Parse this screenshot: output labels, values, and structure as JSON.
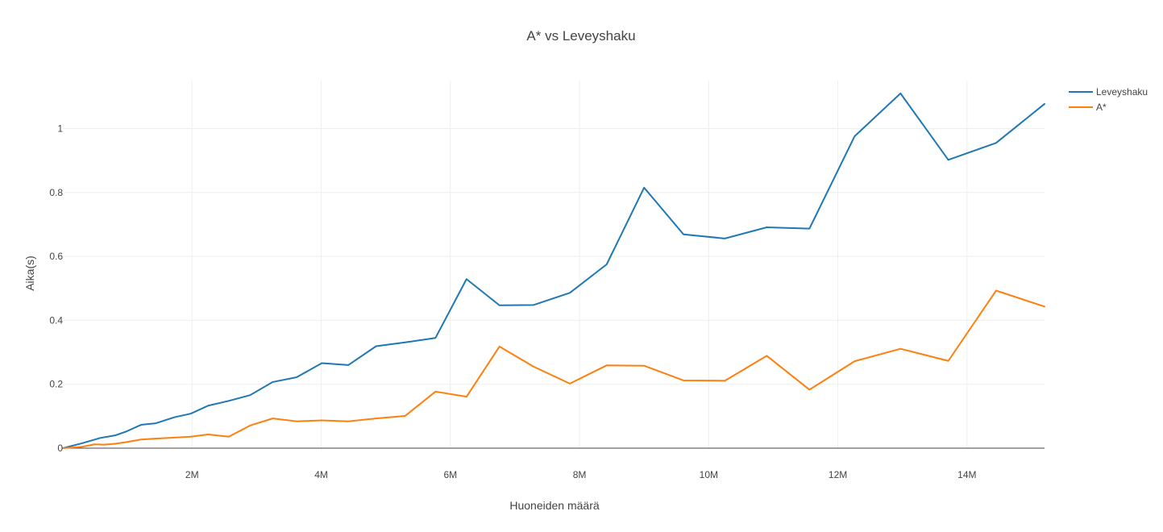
{
  "chart_data": {
    "type": "line",
    "title": "A* vs Leveyshaku",
    "xlabel": "Huoneiden määrä",
    "ylabel": "Aika(s)",
    "xlim": [
      0,
      15200000
    ],
    "ylim": [
      0,
      1.15
    ],
    "x_ticks": [
      {
        "value": 2000000,
        "label": "2M"
      },
      {
        "value": 4000000,
        "label": "4M"
      },
      {
        "value": 6000000,
        "label": "6M"
      },
      {
        "value": 8000000,
        "label": "8M"
      },
      {
        "value": 10000000,
        "label": "10M"
      },
      {
        "value": 12000000,
        "label": "12M"
      },
      {
        "value": 14000000,
        "label": "14M"
      }
    ],
    "y_ticks": [
      {
        "value": 0,
        "label": "0"
      },
      {
        "value": 0.2,
        "label": "0.2"
      },
      {
        "value": 0.4,
        "label": "0.4"
      },
      {
        "value": 0.6,
        "label": "0.6"
      },
      {
        "value": 0.8,
        "label": "0.8"
      },
      {
        "value": 1,
        "label": "1"
      }
    ],
    "grid": true,
    "legend_position": "top-right",
    "series": [
      {
        "name": "Leveyshaku",
        "color": "#1f77b4",
        "points": [
          [
            0,
            0
          ],
          [
            290000,
            0.015
          ],
          [
            580000,
            0.032
          ],
          [
            810000,
            0.04
          ],
          [
            980000,
            0.052
          ],
          [
            1210000,
            0.073
          ],
          [
            1440000,
            0.078
          ],
          [
            1730000,
            0.097
          ],
          [
            1980000,
            0.108
          ],
          [
            2250000,
            0.133
          ],
          [
            2570000,
            0.148
          ],
          [
            2900000,
            0.166
          ],
          [
            3250000,
            0.207
          ],
          [
            3620000,
            0.222
          ],
          [
            4010000,
            0.266
          ],
          [
            4420000,
            0.26
          ],
          [
            4850000,
            0.319
          ],
          [
            5300000,
            0.331
          ],
          [
            5770000,
            0.345
          ],
          [
            6250000,
            0.529
          ],
          [
            6760000,
            0.447
          ],
          [
            7290000,
            0.448
          ],
          [
            7850000,
            0.486
          ],
          [
            8420000,
            0.575
          ],
          [
            9000000,
            0.815
          ],
          [
            9610000,
            0.669
          ],
          [
            10250000,
            0.656
          ],
          [
            10900000,
            0.691
          ],
          [
            11560000,
            0.687
          ],
          [
            12260000,
            0.976
          ],
          [
            12970000,
            1.11
          ],
          [
            13710000,
            0.902
          ],
          [
            14450000,
            0.955
          ],
          [
            15200000,
            1.077
          ]
        ]
      },
      {
        "name": "A*",
        "color": "#ff7f0e",
        "points": [
          [
            0,
            0
          ],
          [
            290000,
            0.004
          ],
          [
            490000,
            0.012
          ],
          [
            640000,
            0.011
          ],
          [
            810000,
            0.014
          ],
          [
            980000,
            0.019
          ],
          [
            1210000,
            0.027
          ],
          [
            1440000,
            0.03
          ],
          [
            1730000,
            0.033
          ],
          [
            1980000,
            0.036
          ],
          [
            2250000,
            0.043
          ],
          [
            2570000,
            0.036
          ],
          [
            2900000,
            0.071
          ],
          [
            3250000,
            0.093
          ],
          [
            3620000,
            0.084
          ],
          [
            4010000,
            0.087
          ],
          [
            4420000,
            0.084
          ],
          [
            4850000,
            0.093
          ],
          [
            5300000,
            0.101
          ],
          [
            5770000,
            0.177
          ],
          [
            6250000,
            0.161
          ],
          [
            6760000,
            0.318
          ],
          [
            7290000,
            0.255
          ],
          [
            7850000,
            0.202
          ],
          [
            8420000,
            0.259
          ],
          [
            9000000,
            0.258
          ],
          [
            9610000,
            0.212
          ],
          [
            10250000,
            0.211
          ],
          [
            10900000,
            0.289
          ],
          [
            11560000,
            0.183
          ],
          [
            12260000,
            0.272
          ],
          [
            12970000,
            0.311
          ],
          [
            13710000,
            0.273
          ],
          [
            14450000,
            0.493
          ],
          [
            15200000,
            0.443
          ]
        ]
      }
    ]
  }
}
